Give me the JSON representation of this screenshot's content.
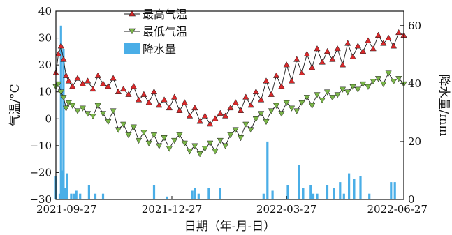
{
  "chart_data": {
    "type": "line",
    "xlabel": "日期（年-月-日）",
    "ylabel_left": "气温/°C",
    "ylabel_right": "降水量/mm",
    "x_range": [
      "2021-09-27",
      "2022-06-27"
    ],
    "x_ticks": [
      "2021-09-27",
      "2021-12-27",
      "2022-03-27",
      "2022-06-27"
    ],
    "y_left_range": [
      -30,
      40
    ],
    "y_left_ticks": [
      "-30",
      "-20",
      "-10",
      "0",
      "10",
      "20",
      "30",
      "40"
    ],
    "y_right_range": [
      0,
      65
    ],
    "y_right_ticks": [
      "0",
      "20",
      "40",
      "60"
    ],
    "legend_position": "top-left",
    "series": [
      {
        "name": "最高气温",
        "axis": "left",
        "marker": "triangle-up",
        "color": "#d9292b",
        "x": [
          "2021-09-27",
          "2021-09-29",
          "2021-10-01",
          "2021-10-03",
          "2021-10-05",
          "2021-10-07",
          "2021-10-10",
          "2021-10-14",
          "2021-10-18",
          "2021-10-22",
          "2021-10-26",
          "2021-10-30",
          "2021-11-03",
          "2021-11-07",
          "2021-11-11",
          "2021-11-15",
          "2021-11-19",
          "2021-11-23",
          "2021-11-27",
          "2021-12-01",
          "2021-12-05",
          "2021-12-09",
          "2021-12-13",
          "2021-12-17",
          "2021-12-21",
          "2021-12-25",
          "2021-12-29",
          "2022-01-02",
          "2022-01-06",
          "2022-01-10",
          "2022-01-14",
          "2022-01-18",
          "2022-01-22",
          "2022-01-26",
          "2022-01-30",
          "2022-02-03",
          "2022-02-07",
          "2022-02-11",
          "2022-02-15",
          "2022-02-19",
          "2022-02-23",
          "2022-02-27",
          "2022-03-03",
          "2022-03-07",
          "2022-03-11",
          "2022-03-15",
          "2022-03-19",
          "2022-03-23",
          "2022-03-27",
          "2022-03-31",
          "2022-04-04",
          "2022-04-08",
          "2022-04-12",
          "2022-04-16",
          "2022-04-20",
          "2022-04-24",
          "2022-04-28",
          "2022-05-02",
          "2022-05-06",
          "2022-05-10",
          "2022-05-14",
          "2022-05-18",
          "2022-05-22",
          "2022-05-26",
          "2022-05-30",
          "2022-06-03",
          "2022-06-07",
          "2022-06-11",
          "2022-06-15",
          "2022-06-19",
          "2022-06-23",
          "2022-06-27"
        ],
        "values": [
          17,
          24,
          27,
          22,
          16,
          14,
          12,
          15,
          13,
          14,
          11,
          16,
          13,
          12,
          15,
          10,
          11,
          9,
          12,
          7,
          9,
          6,
          10,
          5,
          7,
          4,
          8,
          3,
          6,
          1,
          4,
          -1,
          1,
          -2,
          0,
          2,
          1,
          4,
          6,
          3,
          8,
          5,
          10,
          7,
          14,
          9,
          16,
          12,
          20,
          14,
          22,
          17,
          24,
          19,
          26,
          21,
          25,
          22,
          26,
          20,
          28,
          23,
          27,
          25,
          29,
          26,
          31,
          28,
          30,
          27,
          32,
          31
        ]
      },
      {
        "name": "最低气温",
        "axis": "left",
        "marker": "triangle-down",
        "color": "#7ab648",
        "x": [
          "2021-09-27",
          "2021-09-29",
          "2021-10-01",
          "2021-10-03",
          "2021-10-05",
          "2021-10-07",
          "2021-10-10",
          "2021-10-14",
          "2021-10-18",
          "2021-10-22",
          "2021-10-26",
          "2021-10-30",
          "2021-11-03",
          "2021-11-07",
          "2021-11-11",
          "2021-11-15",
          "2021-11-19",
          "2021-11-23",
          "2021-11-27",
          "2021-12-01",
          "2021-12-05",
          "2021-12-09",
          "2021-12-13",
          "2021-12-17",
          "2021-12-21",
          "2021-12-25",
          "2021-12-29",
          "2022-01-02",
          "2022-01-06",
          "2022-01-10",
          "2022-01-14",
          "2022-01-18",
          "2022-01-22",
          "2022-01-26",
          "2022-01-30",
          "2022-02-03",
          "2022-02-07",
          "2022-02-11",
          "2022-02-15",
          "2022-02-19",
          "2022-02-23",
          "2022-02-27",
          "2022-03-03",
          "2022-03-07",
          "2022-03-11",
          "2022-03-15",
          "2022-03-19",
          "2022-03-23",
          "2022-03-27",
          "2022-03-31",
          "2022-04-04",
          "2022-04-08",
          "2022-04-12",
          "2022-04-16",
          "2022-04-20",
          "2022-04-24",
          "2022-04-28",
          "2022-05-02",
          "2022-05-06",
          "2022-05-10",
          "2022-05-14",
          "2022-05-18",
          "2022-05-22",
          "2022-05-26",
          "2022-05-30",
          "2022-06-03",
          "2022-06-07",
          "2022-06-11",
          "2022-06-15",
          "2022-06-19",
          "2022-06-23",
          "2022-06-27"
        ],
        "values": [
          12,
          13,
          10,
          8,
          4,
          6,
          5,
          3,
          4,
          2,
          1,
          5,
          2,
          -1,
          3,
          -4,
          -2,
          -6,
          -3,
          -8,
          -5,
          -9,
          -6,
          -10,
          -7,
          -11,
          -8,
          -6,
          -9,
          -12,
          -10,
          -13,
          -11,
          -9,
          -12,
          -8,
          -10,
          -6,
          -4,
          -7,
          -2,
          -4,
          0,
          2,
          -1,
          3,
          5,
          2,
          6,
          4,
          3,
          6,
          8,
          5,
          9,
          7,
          10,
          8,
          9,
          11,
          10,
          12,
          11,
          13,
          12,
          14,
          15,
          13,
          17,
          14,
          15,
          13
        ]
      },
      {
        "name": "降水量",
        "axis": "right",
        "type": "bar",
        "color": "#4aaee7",
        "x": [
          "2021-09-27",
          "2021-09-30",
          "2021-10-01",
          "2021-10-02",
          "2021-10-03",
          "2021-10-04",
          "2021-10-05",
          "2021-10-06",
          "2021-10-09",
          "2021-10-11",
          "2021-10-13",
          "2021-10-16",
          "2021-10-23",
          "2021-10-28",
          "2021-11-03",
          "2021-12-13",
          "2021-12-23",
          "2022-01-12",
          "2022-01-14",
          "2022-01-17",
          "2022-01-25",
          "2022-02-03",
          "2022-03-09",
          "2022-03-12",
          "2022-03-16",
          "2022-03-28",
          "2022-04-06",
          "2022-04-09",
          "2022-04-15",
          "2022-04-17",
          "2022-04-20",
          "2022-04-28",
          "2022-05-03",
          "2022-05-08",
          "2022-05-11",
          "2022-05-15",
          "2022-05-19",
          "2022-05-24",
          "2022-05-31",
          "2022-06-17",
          "2022-06-20"
        ],
        "values": [
          8,
          2,
          60,
          10,
          52,
          4,
          3,
          9,
          2,
          2,
          3,
          2,
          5,
          2,
          2,
          5,
          1,
          3,
          4,
          2,
          4,
          4,
          2,
          20,
          3,
          5,
          12,
          4,
          5,
          2,
          2,
          5,
          4,
          6,
          2,
          9,
          7,
          8,
          2,
          6,
          6
        ]
      }
    ]
  },
  "legend": {
    "items": [
      {
        "label": "最高气温"
      },
      {
        "label": "最低气温"
      },
      {
        "label": "降水量"
      }
    ]
  },
  "colors": {
    "high": "#d9292b",
    "low": "#7ab648",
    "rain": "#4aaee7",
    "line": "#1a1a1a"
  }
}
